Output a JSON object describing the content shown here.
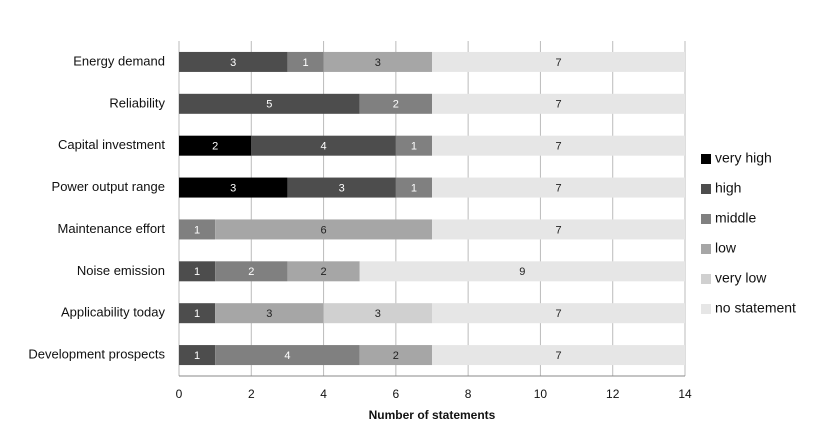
{
  "chart_data": {
    "type": "stacked-bar-horizontal",
    "x_label": "Number of statements",
    "categories": [
      "Energy demand",
      "Reliability",
      "Capital investment",
      "Power output range",
      "Maintenance effort",
      "Noise emission",
      "Applicability today",
      "Development prospects"
    ],
    "series": [
      {
        "name": "very high",
        "color": "#000000",
        "values": [
          null,
          null,
          2,
          3,
          null,
          null,
          null,
          null
        ]
      },
      {
        "name": "high",
        "color": "#4d4d4d",
        "values": [
          3,
          5,
          4,
          3,
          null,
          1,
          1,
          1
        ]
      },
      {
        "name": "middle",
        "color": "#808080",
        "values": [
          1,
          2,
          1,
          1,
          1,
          2,
          null,
          4
        ]
      },
      {
        "name": "low",
        "color": "#a6a6a6",
        "values": [
          3,
          null,
          null,
          null,
          6,
          2,
          3,
          2
        ]
      },
      {
        "name": "very low",
        "color": "#d0d0d0",
        "values": [
          null,
          null,
          null,
          null,
          null,
          null,
          3,
          null
        ]
      },
      {
        "name": "no statement",
        "color": "#e6e6e6",
        "values": [
          7,
          7,
          7,
          7,
          7,
          9,
          7,
          7
        ]
      }
    ],
    "xlim": [
      0,
      14
    ],
    "xticks": [
      0,
      2,
      4,
      6,
      8,
      10,
      12,
      14
    ],
    "grid": true,
    "legend": "right"
  }
}
